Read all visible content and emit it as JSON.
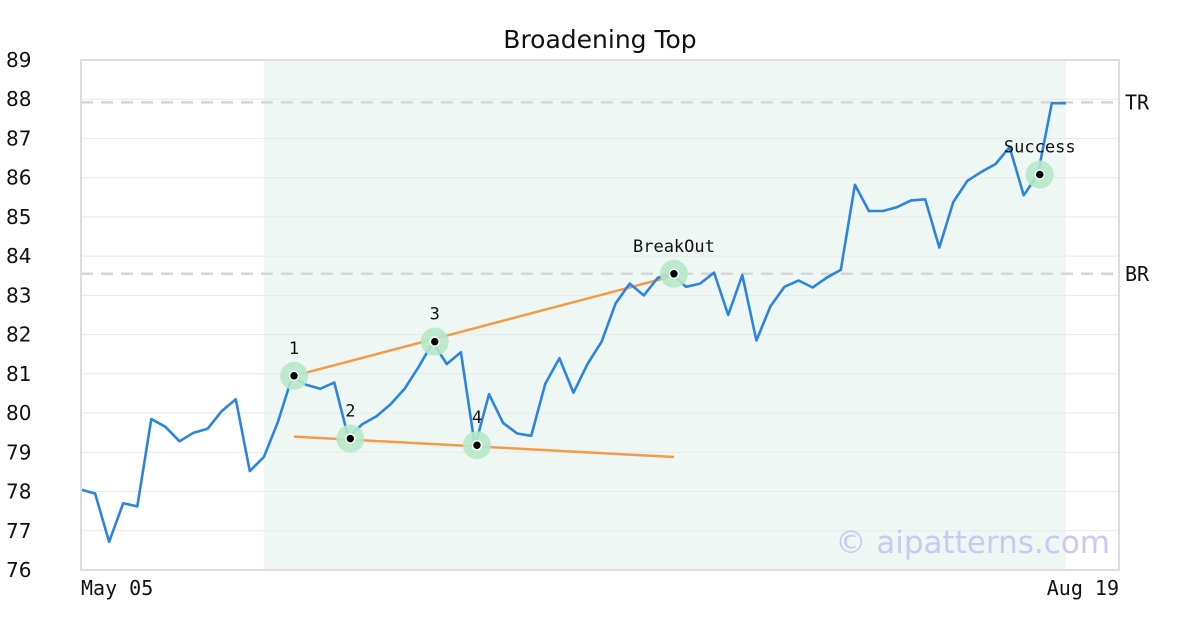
{
  "chart_data": {
    "type": "line",
    "title": "Broadening Top",
    "ylim": [
      76,
      89
    ],
    "y_ticks": [
      "76",
      "77",
      "78",
      "79",
      "80",
      "81",
      "82",
      "83",
      "84",
      "85",
      "86",
      "87",
      "88",
      "89"
    ],
    "x_ticks": [
      "May 05",
      "Aug 19"
    ],
    "series": [
      {
        "values": [
          78.05,
          77.95,
          76.72,
          77.7,
          77.62,
          79.85,
          79.65,
          79.28,
          79.5,
          79.6,
          80.05,
          80.35,
          78.52,
          78.88,
          79.78,
          80.92,
          80.72,
          80.62,
          80.78,
          79.38,
          79.72,
          79.92,
          80.22,
          80.62,
          81.18,
          81.8,
          81.25,
          81.55,
          79.15,
          80.48,
          79.75,
          79.48,
          79.42,
          80.75,
          81.4,
          80.52,
          81.25,
          81.82,
          82.8,
          83.3,
          83.0,
          83.45,
          83.55,
          83.22,
          83.3,
          83.58,
          82.5,
          83.52,
          81.85,
          82.72,
          83.22,
          83.38,
          83.2,
          83.45,
          83.65,
          85.82,
          85.15,
          85.15,
          85.25,
          85.42,
          85.45,
          84.22,
          85.38,
          85.92,
          86.15,
          86.35,
          86.78,
          85.55,
          86.08,
          87.9,
          87.9
        ]
      }
    ],
    "color": "#2b84e0",
    "highlight_region": {
      "from_index": 13,
      "to_index": 70
    },
    "reference_lines": [
      {
        "label": "TR",
        "value": 87.92
      },
      {
        "label": "BR",
        "value": 83.55
      }
    ],
    "trendlines": [
      {
        "from": {
          "index": 15,
          "value": 80.95
        },
        "to": {
          "index": 42,
          "value": 83.5
        }
      },
      {
        "from": {
          "index": 15,
          "value": 79.4
        },
        "to": {
          "index": 42,
          "value": 78.88
        }
      }
    ],
    "points": [
      {
        "label": "1",
        "index": 15,
        "value": 80.95
      },
      {
        "label": "2",
        "index": 19,
        "value": 79.35
      },
      {
        "label": "3",
        "index": 25,
        "value": 81.82
      },
      {
        "label": "4",
        "index": 28,
        "value": 79.18
      },
      {
        "label": "BreakOut",
        "index": 42,
        "value": 83.55
      },
      {
        "label": "Success",
        "index": 68,
        "value": 86.08
      }
    ],
    "grid": true
  },
  "watermark": "© aipatterns.com",
  "colors": {
    "line": "#2b84e0",
    "trendline": "#f39c47",
    "marker_halo": "#b5e8c9",
    "highlight": "#eef7f3",
    "refline": "#d6d6d6"
  }
}
